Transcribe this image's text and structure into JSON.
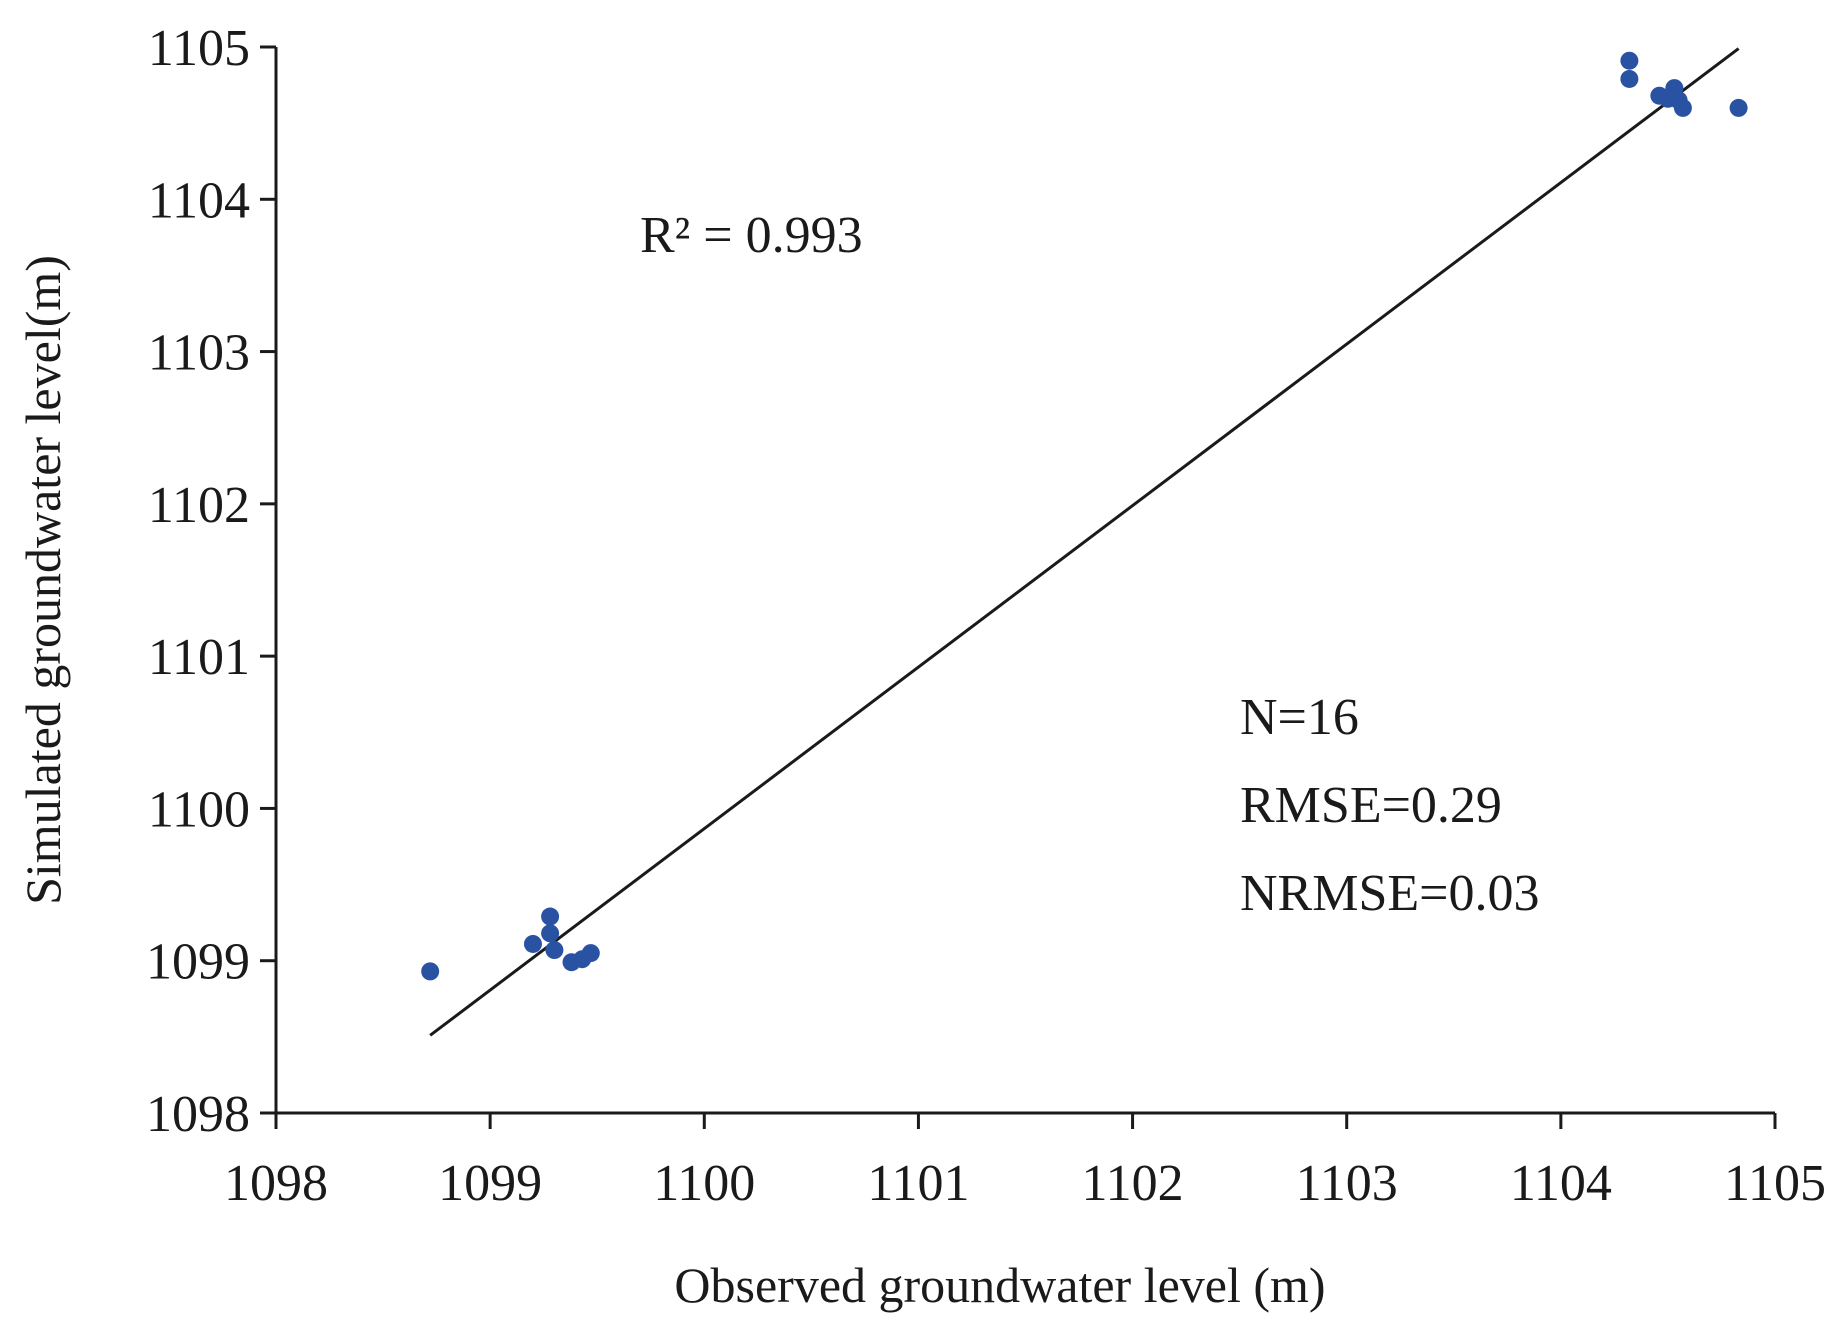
{
  "chart_data": {
    "type": "scatter",
    "title": "",
    "xlabel": "Observed groundwater level (m)",
    "ylabel": "Simulated groundwater level(m)",
    "xlim": [
      1098,
      1105
    ],
    "ylim": [
      1098,
      1105
    ],
    "x_ticks": [
      1098,
      1099,
      1100,
      1101,
      1102,
      1103,
      1104,
      1105
    ],
    "y_ticks": [
      1098,
      1099,
      1100,
      1101,
      1102,
      1103,
      1104,
      1105
    ],
    "x_tick_labels": [
      "1098",
      "1099",
      "1100",
      "1101",
      "1102",
      "1103",
      "1104",
      "1105"
    ],
    "y_tick_labels": [
      "1098",
      "1099",
      "1100",
      "1101",
      "1102",
      "1103",
      "1104",
      "1105"
    ],
    "grid": false,
    "points": [
      {
        "x": 1098.72,
        "y": 1098.93
      },
      {
        "x": 1099.2,
        "y": 1099.11
      },
      {
        "x": 1099.28,
        "y": 1099.29
      },
      {
        "x": 1099.28,
        "y": 1099.18
      },
      {
        "x": 1099.3,
        "y": 1099.07
      },
      {
        "x": 1099.38,
        "y": 1098.99
      },
      {
        "x": 1099.43,
        "y": 1099.01
      },
      {
        "x": 1099.47,
        "y": 1099.05
      },
      {
        "x": 1104.32,
        "y": 1104.91
      },
      {
        "x": 1104.32,
        "y": 1104.79
      },
      {
        "x": 1104.46,
        "y": 1104.68
      },
      {
        "x": 1104.5,
        "y": 1104.66
      },
      {
        "x": 1104.53,
        "y": 1104.73
      },
      {
        "x": 1104.55,
        "y": 1104.65
      },
      {
        "x": 1104.57,
        "y": 1104.6
      },
      {
        "x": 1104.83,
        "y": 1104.6
      }
    ],
    "trendline": {
      "x_start": 1098.72,
      "y_start": 1098.51,
      "x_end": 1104.83,
      "y_end": 1104.99
    },
    "point_color": "#2a52a3",
    "line_color": "#1a1a1a",
    "annotations": {
      "r_squared": "R² = 0.993",
      "n": "N=16",
      "rmse": "RMSE=0.29",
      "nrmse": "NRMSE=0.03"
    }
  }
}
